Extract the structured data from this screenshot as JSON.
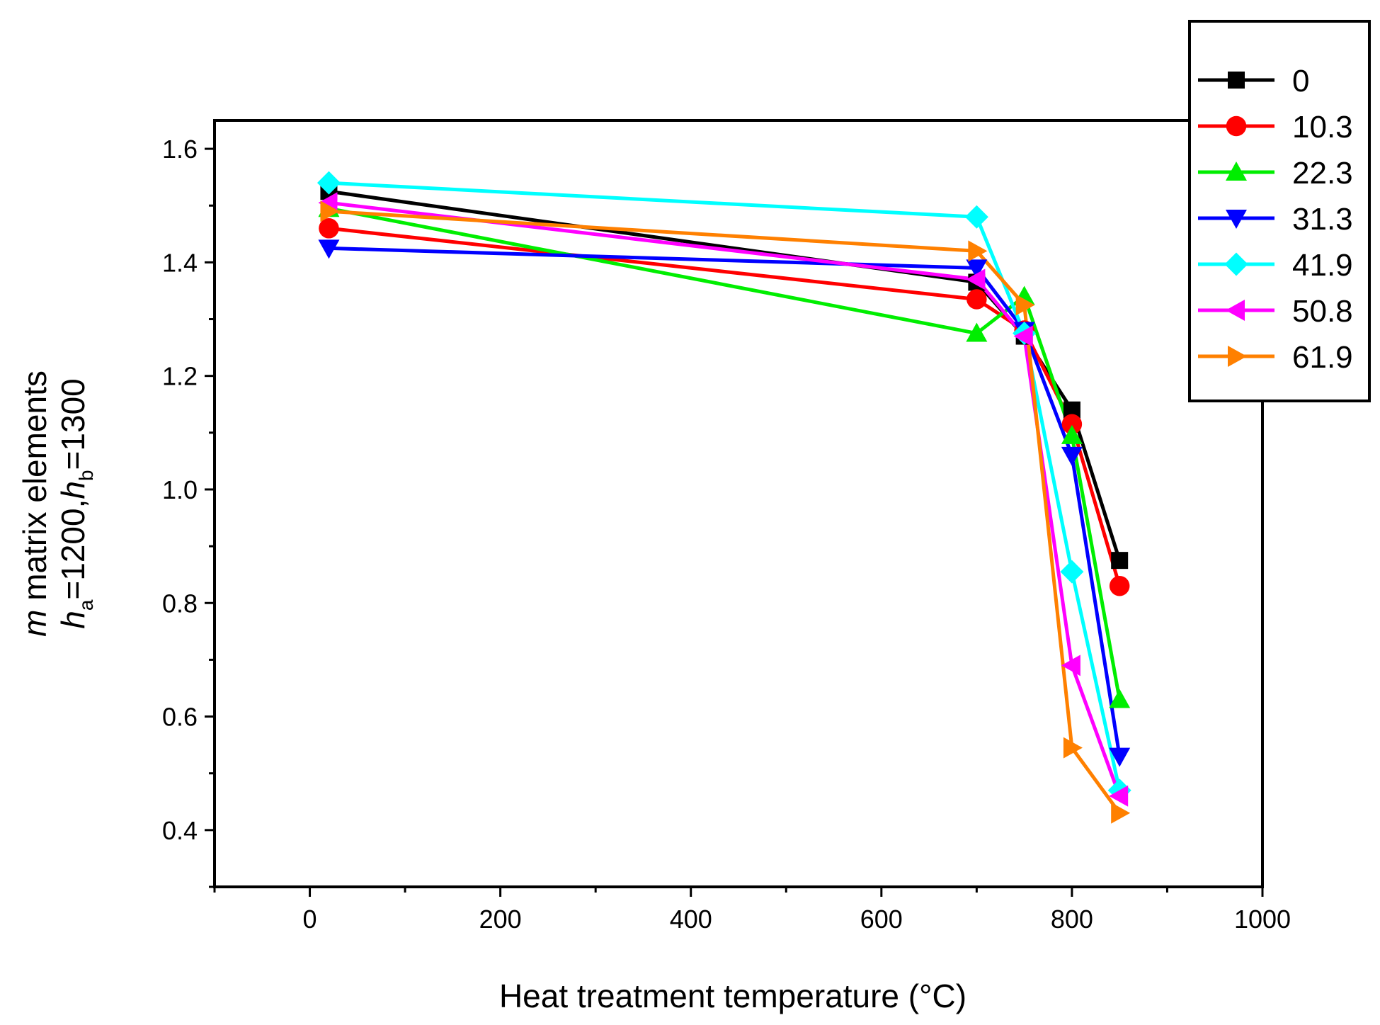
{
  "chart_data": {
    "type": "line",
    "title": "",
    "xlabel": "Heat treatment temperature (°C)",
    "ylabel_line1": {
      "italic": "m",
      "text": " matrix elements"
    },
    "ylabel_line2": {
      "h": "h",
      "sub_a": "a",
      "eq_a": "=1200,",
      "sub_b": "b",
      "eq_b": "=1300"
    },
    "xlim": [
      -100,
      1000
    ],
    "ylim": [
      0.3,
      1.65
    ],
    "x_ticks": [
      0,
      200,
      400,
      600,
      800,
      1000
    ],
    "x_tick_labels": [
      "0",
      "200",
      "400",
      "600",
      "800",
      "1000"
    ],
    "y_ticks": [
      0.4,
      0.6,
      0.8,
      1.0,
      1.2,
      1.4,
      1.6
    ],
    "y_tick_labels": [
      "0.4",
      "0.6",
      "0.8",
      "1.0",
      "1.2",
      "1.4",
      "1.6"
    ],
    "grid": false,
    "legend_position": "top-right, outside plot",
    "x": [
      20,
      700,
      750,
      800,
      850
    ],
    "series": [
      {
        "name": "0",
        "color": "#000000",
        "marker": "square",
        "values": [
          1.525,
          1.365,
          1.27,
          1.14,
          0.875
        ]
      },
      {
        "name": "10.3",
        "color": "#ff0000",
        "marker": "circle",
        "values": [
          1.46,
          1.335,
          1.28,
          1.115,
          0.83
        ]
      },
      {
        "name": "22.3",
        "color": "#00ee00",
        "marker": "triangle-up",
        "values": [
          1.495,
          1.275,
          1.34,
          1.095,
          0.63
        ]
      },
      {
        "name": "31.3",
        "color": "#0000ff",
        "marker": "triangle-down",
        "values": [
          1.425,
          1.39,
          1.28,
          1.06,
          0.53
        ]
      },
      {
        "name": "41.9",
        "color": "#00ffff",
        "marker": "diamond",
        "values": [
          1.54,
          1.48,
          1.275,
          0.855,
          0.47
        ]
      },
      {
        "name": "50.8",
        "color": "#ff00ff",
        "marker": "triangle-left",
        "values": [
          1.505,
          1.37,
          1.27,
          0.69,
          0.46
        ]
      },
      {
        "name": "61.9",
        "color": "#ff8000",
        "marker": "triangle-right",
        "values": [
          1.49,
          1.42,
          1.325,
          0.545,
          0.43
        ]
      }
    ]
  }
}
